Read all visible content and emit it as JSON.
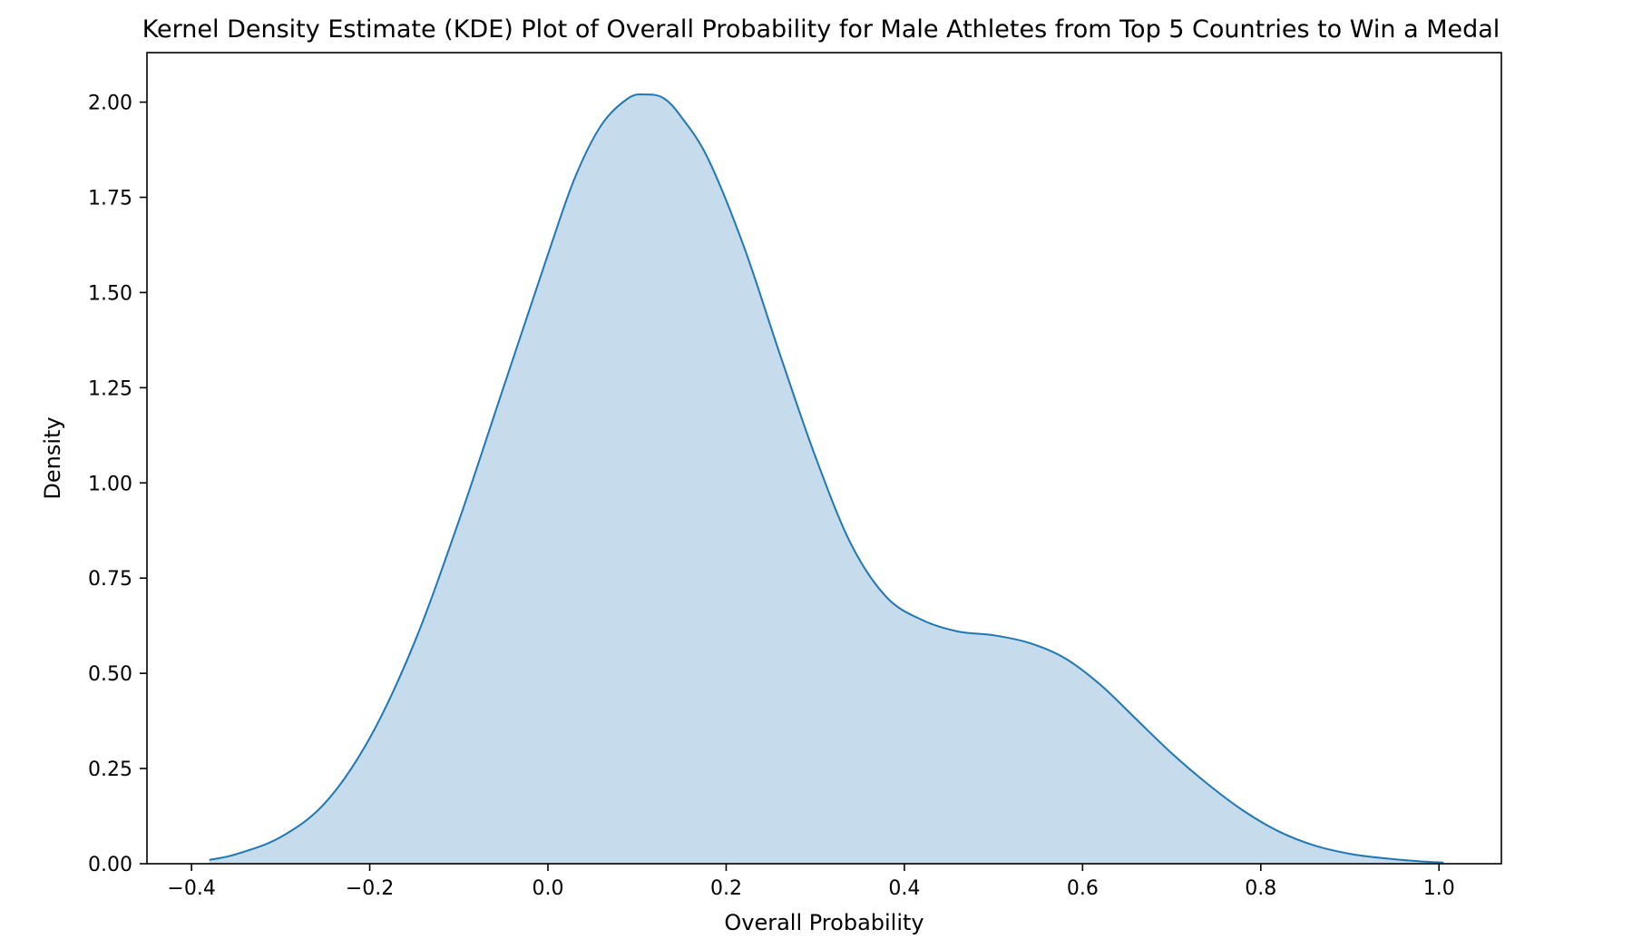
{
  "chart_data": {
    "type": "area",
    "title": "Kernel Density Estimate (KDE) Plot of Overall Probability for Male Athletes from Top 5 Countries to Win a Medal",
    "xlabel": "Overall Probability",
    "ylabel": "Density",
    "xlim": [
      -0.45,
      1.07
    ],
    "ylim": [
      0.0,
      2.13
    ],
    "xticks": [
      -0.4,
      -0.2,
      0.0,
      0.2,
      0.4,
      0.6,
      0.8,
      1.0
    ],
    "xtick_labels": [
      "−0.4",
      "−0.2",
      "0.0",
      "0.2",
      "0.4",
      "0.6",
      "0.8",
      "1.0"
    ],
    "yticks": [
      0.0,
      0.25,
      0.5,
      0.75,
      1.0,
      1.25,
      1.5,
      1.75,
      2.0
    ],
    "ytick_labels": [
      "0.00",
      "0.25",
      "0.50",
      "0.75",
      "1.00",
      "1.25",
      "1.50",
      "1.75",
      "2.00"
    ],
    "grid": false,
    "fill_color": "#c6dbec",
    "line_color": "#1f77b4",
    "series": [
      {
        "x": [
          -0.38,
          -0.35,
          -0.3,
          -0.25,
          -0.2,
          -0.15,
          -0.1,
          -0.05,
          0.0,
          0.03,
          0.06,
          0.09,
          0.11,
          0.13,
          0.15,
          0.18,
          0.22,
          0.26,
          0.3,
          0.34,
          0.38,
          0.42,
          0.46,
          0.5,
          0.54,
          0.58,
          0.62,
          0.66,
          0.7,
          0.74,
          0.78,
          0.82,
          0.86,
          0.9,
          0.94,
          0.98,
          1.005
        ],
        "y": [
          0.01,
          0.025,
          0.07,
          0.16,
          0.33,
          0.58,
          0.9,
          1.25,
          1.6,
          1.8,
          1.94,
          2.01,
          2.02,
          2.01,
          1.96,
          1.85,
          1.62,
          1.34,
          1.07,
          0.84,
          0.7,
          0.64,
          0.61,
          0.6,
          0.58,
          0.54,
          0.47,
          0.38,
          0.29,
          0.21,
          0.14,
          0.085,
          0.048,
          0.026,
          0.014,
          0.006,
          0.003
        ]
      }
    ]
  }
}
